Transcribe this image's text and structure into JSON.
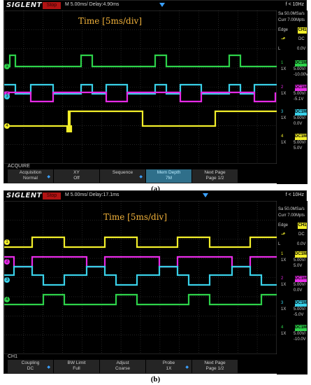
{
  "panels": [
    {
      "logo": "SIGLENT",
      "stop_label": "Stop",
      "timebase": "M 5.00ms/ Delay:4.90ms",
      "freq": "f < 10Hz",
      "annotation": "Time [5ms/div]",
      "sample_rate": "Sa 50.0MSa/s",
      "memory": "Curr 7.00Mpts",
      "trigger": {
        "type": "Edge",
        "source": "CH1",
        "coupling": "DC",
        "mode": "L",
        "level": "0.0V"
      },
      "channels": [
        {
          "num": "1",
          "coupling": "DC1M",
          "probe": "1X",
          "scale": "5.00V/",
          "offset": "-10.00V",
          "color": "#2dd24a"
        },
        {
          "num": "2",
          "coupling": "DC1M",
          "probe": "1X",
          "scale": "5.00V/",
          "offset": "-5.1V",
          "color": "#e62ae6"
        },
        {
          "num": "3",
          "coupling": "DC1M",
          "probe": "1X",
          "scale": "5.00V/",
          "offset": "0.0V",
          "color": "#39d0e8"
        },
        {
          "num": "4",
          "coupling": "DC1M",
          "probe": "1X",
          "scale": "5.00V/",
          "offset": "5.0V",
          "color": "#f2ee2a"
        }
      ],
      "menu_title": "ACQUIRE",
      "softkeys": [
        {
          "line1": "Acquisition",
          "line2": "Normal",
          "arrow": true,
          "active": false
        },
        {
          "line1": "XY",
          "line2": "Off",
          "arrow": false,
          "active": false
        },
        {
          "line1": "Sequence",
          "line2": "",
          "arrow": true,
          "active": false
        },
        {
          "line1": "Mem Depth",
          "line2": "7M",
          "arrow": false,
          "active": true
        },
        {
          "line1": "Next Page",
          "line2": "Page 1/2",
          "arrow": false,
          "active": false
        }
      ],
      "caption": "(a)"
    },
    {
      "logo": "SIGLENT",
      "stop_label": "Stop",
      "timebase": "M 5.00ms/ Delay:17.1ms",
      "freq": "f < 10Hz",
      "annotation": "Time [5ms/div]",
      "sample_rate": "Sa 50.0MSa/s",
      "memory": "Curr 7.00Mpts",
      "trigger": {
        "type": "Edge",
        "source": "CH1",
        "coupling": "DC",
        "mode": "L",
        "level": "0.0V"
      },
      "channels": [
        {
          "num": "1",
          "coupling": "DC1M",
          "probe": "1X",
          "scale": "5.00V/",
          "offset": "5.0V",
          "color": "#f2ee2a"
        },
        {
          "num": "2",
          "coupling": "DC1M",
          "probe": "1X",
          "scale": "5.00V/",
          "offset": "0.0V",
          "color": "#e62ae6"
        },
        {
          "num": "3",
          "coupling": "DC1M",
          "probe": "1X",
          "scale": "5.00V/",
          "offset": "-5.0V",
          "color": "#39d0e8"
        },
        {
          "num": "4",
          "coupling": "DC1M",
          "probe": "1X",
          "scale": "5.00V/",
          "offset": "-10.0V",
          "color": "#2dd24a"
        }
      ],
      "menu_title": "CH1",
      "softkeys": [
        {
          "line1": "Coupling",
          "line2": "DC",
          "arrow": true,
          "active": false
        },
        {
          "line1": "BW Limit",
          "line2": "Full",
          "arrow": false,
          "active": false
        },
        {
          "line1": "Adjust",
          "line2": "Coarse",
          "arrow": false,
          "active": false
        },
        {
          "line1": "Probe",
          "line2": "1X",
          "arrow": true,
          "active": false
        },
        {
          "line1": "Next Page",
          "line2": "Page 1/2",
          "arrow": false,
          "active": false
        }
      ],
      "caption": "(b)"
    }
  ]
}
